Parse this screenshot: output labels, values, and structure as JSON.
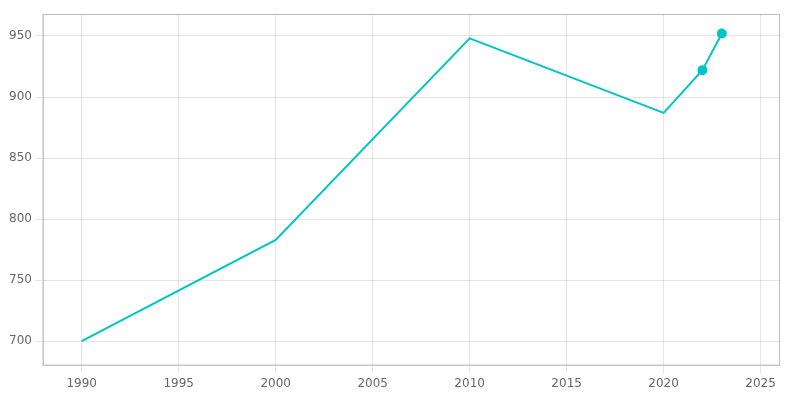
{
  "chart_data": {
    "type": "line",
    "x": [
      1990,
      2000,
      2010,
      2020,
      2022,
      2023
    ],
    "series": [
      {
        "color": "#00C5C5",
        "values": [
          700,
          783,
          948,
          887,
          922,
          952
        ],
        "marker": "none",
        "line_style": "solid"
      },
      {
        "color": "#00C5C5",
        "values": [
          null,
          null,
          null,
          null,
          922,
          952
        ],
        "marker": "circle",
        "line_style": "none"
      }
    ],
    "xlim": [
      1988,
      2026
    ],
    "ylim": [
      680,
      968
    ],
    "xticks": [
      1990,
      1995,
      2000,
      2005,
      2010,
      2015,
      2020,
      2025
    ],
    "yticks": [
      700,
      750,
      800,
      850,
      900,
      950
    ],
    "grid": true
  }
}
